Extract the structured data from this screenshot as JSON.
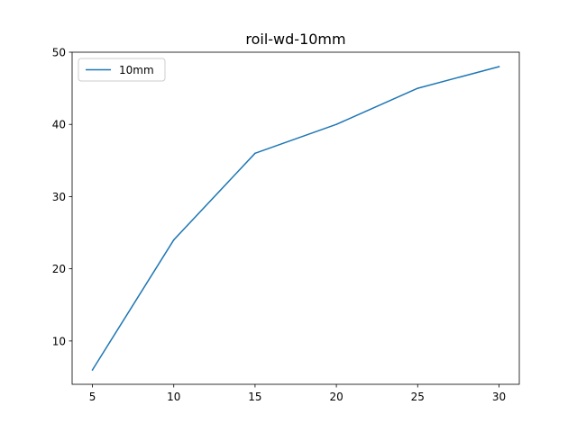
{
  "chart_data": {
    "type": "line",
    "title": "roil-wd-10mm",
    "xlabel": "",
    "ylabel": "",
    "x": [
      5,
      10,
      15,
      20,
      25,
      30
    ],
    "series": [
      {
        "name": "10mm",
        "values": [
          6,
          24,
          36,
          40,
          45,
          48
        ],
        "color": "#1f77b4"
      }
    ],
    "xlim": [
      3.75,
      31.25
    ],
    "ylim": [
      4.0,
      50.0
    ],
    "xticks": [
      5,
      10,
      15,
      20,
      25,
      30
    ],
    "yticks": [
      10,
      20,
      30,
      40,
      50
    ],
    "grid": false,
    "legend_position": "top-left"
  }
}
